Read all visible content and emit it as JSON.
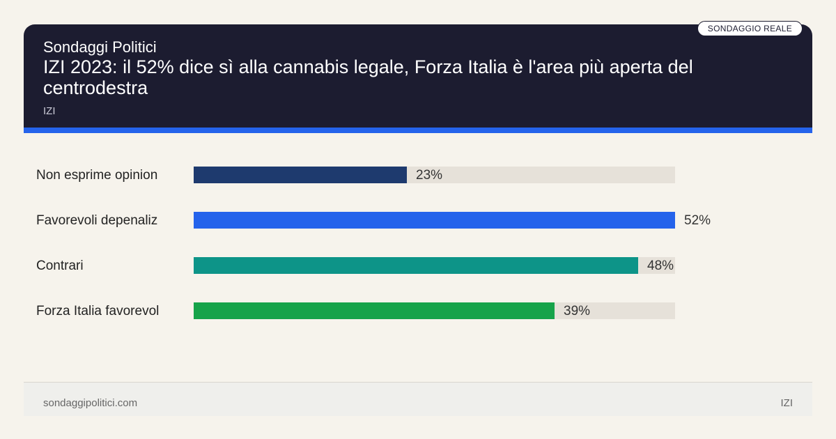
{
  "header": {
    "brand": "Sondaggi Politici",
    "title": "IZI 2023: il 52% dice sì alla cannabis legale, Forza Italia è l'area più aperta del centrodestra",
    "source": "IZI",
    "badge": "SONDAGGIO REALE",
    "accent_color": "#2563eb",
    "background_color": "#1c1c30"
  },
  "chart_data": {
    "type": "bar",
    "orientation": "horizontal",
    "categories": [
      "Non esprime opinion",
      "Favorevoli depenaliz",
      "Contrari",
      "Forza Italia favorevol"
    ],
    "values": [
      23,
      52,
      48,
      39
    ],
    "value_labels": [
      "23%",
      "52%",
      "48%",
      "39%"
    ],
    "colors": [
      "#1e3a6e",
      "#2563eb",
      "#0d9488",
      "#16a34a"
    ],
    "xlim": [
      0,
      52
    ],
    "unit": "%"
  },
  "footer": {
    "site": "sondaggipolitici.com",
    "source": "IZI"
  }
}
